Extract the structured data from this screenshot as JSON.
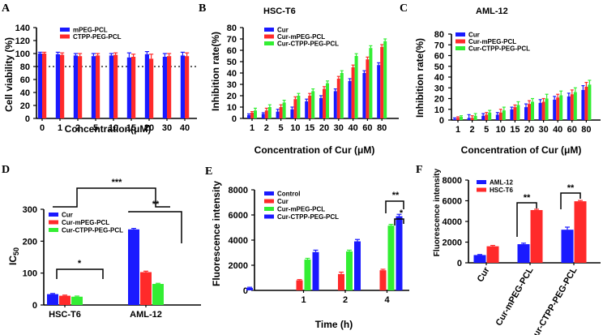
{
  "colors": {
    "blue": "#1a1aff",
    "red": "#ff2a2a",
    "green": "#33ee33",
    "black": "#000000"
  },
  "chart_data": [
    {
      "panel": "A",
      "type": "bar",
      "title": "",
      "xlabel": "Concentration(μM)",
      "ylabel": "Cell viability (%)",
      "ylim": [
        0,
        140
      ],
      "yticks": [
        "0",
        "20",
        "40",
        "60",
        "80",
        "100",
        "120",
        "140"
      ],
      "reference_line": 80,
      "categories": [
        "0",
        "1",
        "2",
        "5",
        "10",
        "15",
        "20",
        "30",
        "40"
      ],
      "series": [
        {
          "name": "mPEG-PCL",
          "color": "blue",
          "values": [
            100,
            99,
            97,
            96,
            97,
            94,
            99,
            95,
            97
          ],
          "errors": [
            2,
            3,
            3,
            4,
            3,
            7,
            4,
            5,
            5
          ]
        },
        {
          "name": "CTPP-PEG-PCL",
          "color": "red",
          "values": [
            100,
            98,
            96,
            97,
            98,
            95,
            92,
            96,
            96
          ],
          "errors": [
            2,
            3,
            4,
            3,
            3,
            4,
            7,
            4,
            5
          ]
        }
      ]
    },
    {
      "panel": "B",
      "type": "bar",
      "title": "HSC-T6",
      "xlabel": "Concentration of Cur (μM)",
      "ylabel": "Inhibition rate(%)",
      "ylim": [
        0,
        80
      ],
      "yticks": [
        "0",
        "10",
        "20",
        "30",
        "40",
        "50",
        "60",
        "70",
        "80"
      ],
      "categories": [
        "1",
        "2",
        "5",
        "10",
        "15",
        "20",
        "30",
        "40",
        "60",
        "80"
      ],
      "series": [
        {
          "name": "Cur",
          "color": "blue",
          "values": [
            3,
            4,
            6,
            8,
            15,
            18,
            24,
            33,
            40,
            47
          ],
          "errors": [
            1,
            1,
            2,
            2,
            2,
            2,
            2,
            2,
            2,
            2
          ]
        },
        {
          "name": "Cur-mPEG-PCL",
          "color": "red",
          "values": [
            5,
            7,
            10,
            17,
            20,
            26,
            35,
            45,
            52,
            63
          ],
          "errors": [
            1,
            2,
            2,
            2,
            2,
            2,
            2,
            2,
            2,
            2
          ]
        },
        {
          "name": "Cur-CTPP-PEG-PCL",
          "color": "green",
          "values": [
            7,
            10,
            14,
            20,
            24,
            31,
            40,
            55,
            62,
            68
          ],
          "errors": [
            2,
            2,
            2,
            2,
            2,
            2,
            2,
            2,
            2,
            2
          ]
        }
      ]
    },
    {
      "panel": "C",
      "type": "bar",
      "title": "AML-12",
      "xlabel": "Concentration of Cur (μM)",
      "ylabel": "Inhibition rate(%)",
      "ylim": [
        0,
        80
      ],
      "yticks": [
        "0",
        "10",
        "20",
        "30",
        "40",
        "50",
        "60",
        "70",
        "80"
      ],
      "categories": [
        "1",
        "2",
        "5",
        "10",
        "15",
        "20",
        "30",
        "40",
        "60",
        "80"
      ],
      "series": [
        {
          "name": "Cur",
          "color": "blue",
          "values": [
            1,
            2,
            4,
            5,
            10,
            12,
            16,
            19,
            22,
            28
          ],
          "errors": [
            1,
            3,
            2,
            2,
            2,
            3,
            3,
            3,
            3,
            4
          ]
        },
        {
          "name": "Cur-mPEG-PCL",
          "color": "red",
          "values": [
            2,
            2,
            5,
            7,
            12,
            15,
            17,
            21,
            24,
            31
          ],
          "errors": [
            1,
            2,
            2,
            3,
            2,
            3,
            3,
            3,
            4,
            4
          ]
        },
        {
          "name": "Cur-CTPP-PEG-PCL",
          "color": "green",
          "values": [
            3,
            4,
            7,
            9,
            14,
            17,
            20,
            23,
            26,
            33
          ],
          "errors": [
            1,
            2,
            2,
            3,
            3,
            3,
            4,
            4,
            4,
            4
          ]
        }
      ]
    },
    {
      "panel": "D",
      "type": "bar",
      "title": "",
      "xlabel": "",
      "ylabel": "IC",
      "ylabel_sub": "50",
      "ylim": [
        0,
        300
      ],
      "yticks": [
        "0",
        "100",
        "200",
        "300"
      ],
      "categories": [
        "HSC-T6",
        "AML-12"
      ],
      "series": [
        {
          "name": "Cur",
          "color": "blue",
          "values": [
            34,
            237
          ],
          "errors": [
            2,
            3
          ]
        },
        {
          "name": "Cur-mPEG-PCL",
          "color": "red",
          "values": [
            29,
            103
          ],
          "errors": [
            2,
            3
          ]
        },
        {
          "name": "Cur-CTPP-PEG-PCL",
          "color": "green",
          "values": [
            26,
            66
          ],
          "errors": [
            2,
            2
          ]
        }
      ],
      "annotations": [
        "*",
        "**",
        "***"
      ]
    },
    {
      "panel": "E",
      "type": "bar",
      "title": "",
      "xlabel": "Time (h)",
      "ylabel": "Fluorescence intensity",
      "ylim": [
        0,
        8000
      ],
      "yticks": [
        "0",
        "2000",
        "4000",
        "6000",
        "8000"
      ],
      "categories": [
        "",
        "1",
        "2",
        "4"
      ],
      "series": [
        {
          "name": "Control",
          "color": "blue",
          "values": [
            200,
            null,
            null,
            null
          ],
          "errors": [
            50,
            0,
            0,
            0
          ]
        },
        {
          "name": "Cur",
          "color": "red",
          "values": [
            null,
            800,
            1300,
            1600
          ],
          "errors": [
            0,
            60,
            150,
            80
          ]
        },
        {
          "name": "Cur-mPEG-PCL",
          "color": "green",
          "values": [
            null,
            2450,
            3100,
            5150
          ],
          "errors": [
            0,
            100,
            100,
            100
          ]
        },
        {
          "name": "Cur-CTPP-PEG-PCL",
          "color": "blue",
          "values": [
            null,
            3050,
            3900,
            5900
          ],
          "errors": [
            0,
            150,
            150,
            150
          ]
        }
      ],
      "annotations": [
        "**",
        "*"
      ]
    },
    {
      "panel": "F",
      "type": "bar",
      "title": "",
      "xlabel": "",
      "ylabel": "Fluorescence intensity",
      "ylim": [
        0,
        8000
      ],
      "yticks": [
        "0",
        "2000",
        "4000",
        "6000",
        "8000"
      ],
      "categories": [
        "Cur",
        "Cur-mPEG-PCL",
        "Cur-CTPP-PEG-PCL"
      ],
      "series": [
        {
          "name": "AML-12",
          "color": "blue",
          "values": [
            750,
            1800,
            3200
          ],
          "errors": [
            50,
            100,
            250
          ]
        },
        {
          "name": "HSC-T6",
          "color": "red",
          "values": [
            1600,
            5100,
            5950
          ],
          "errors": [
            80,
            80,
            80
          ]
        }
      ],
      "annotations": [
        "**",
        "**"
      ]
    }
  ]
}
